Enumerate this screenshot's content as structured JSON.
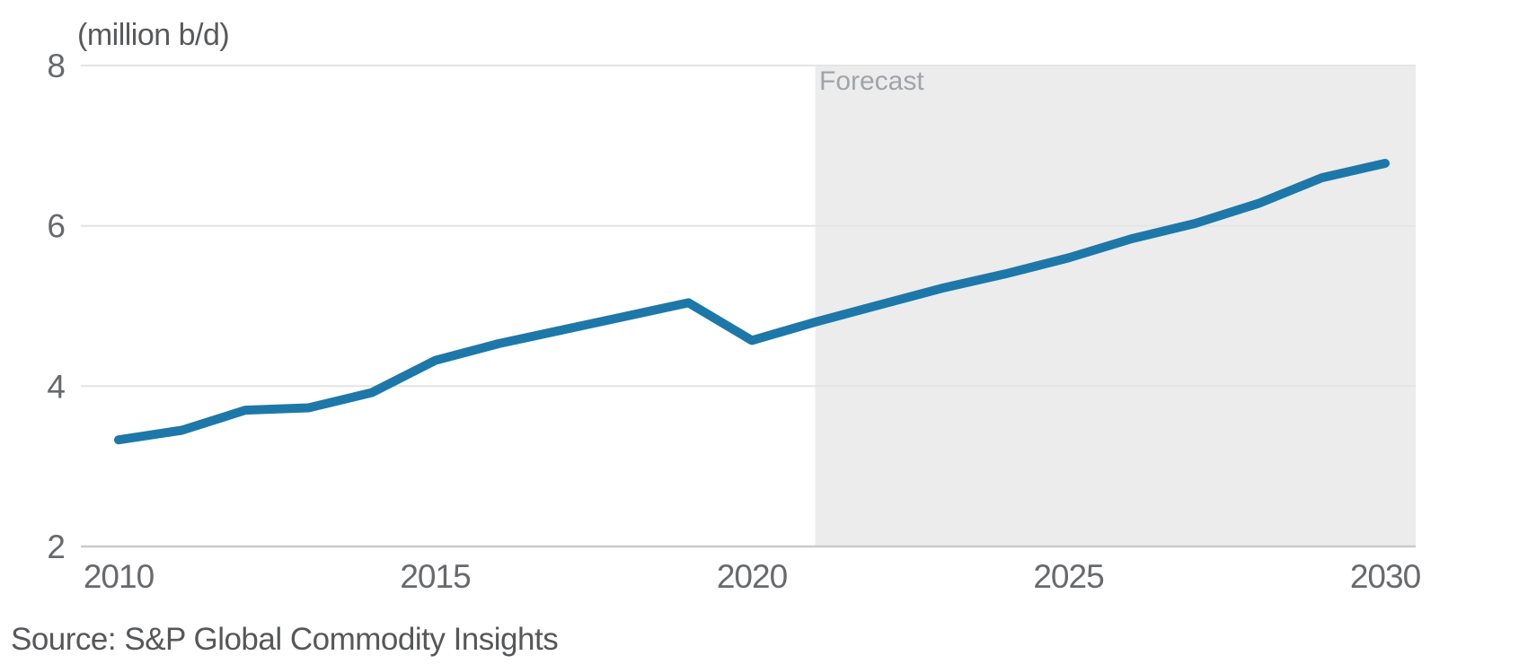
{
  "chart_data": {
    "type": "line",
    "unit_label": "(million b/d)",
    "x": [
      2010,
      2011,
      2012,
      2013,
      2014,
      2015,
      2016,
      2017,
      2018,
      2019,
      2020,
      2021,
      2022,
      2023,
      2024,
      2025,
      2026,
      2027,
      2028,
      2029,
      2030
    ],
    "values": [
      3.33,
      3.45,
      3.7,
      3.73,
      3.92,
      4.32,
      4.53,
      4.7,
      4.87,
      5.04,
      4.57,
      4.8,
      5.01,
      5.22,
      5.4,
      5.6,
      5.84,
      6.03,
      6.28,
      6.6,
      6.78
    ],
    "ylim": [
      2,
      8
    ],
    "yticks": [
      2,
      4,
      6,
      8
    ],
    "xticks": [
      2010,
      2015,
      2020,
      2025,
      2030
    ],
    "grid": "horizontal",
    "legend": "none",
    "forecast": {
      "label": "Forecast",
      "start_year": 2021
    },
    "colors": {
      "line": "#1d78a9",
      "forecast_band": "#ececec",
      "gridline": "#e4e4e4",
      "axis_line": "#c8cacc",
      "tick_text": "#67696c"
    }
  },
  "source": {
    "text": "Source: S&P Global Commodity Insights"
  }
}
